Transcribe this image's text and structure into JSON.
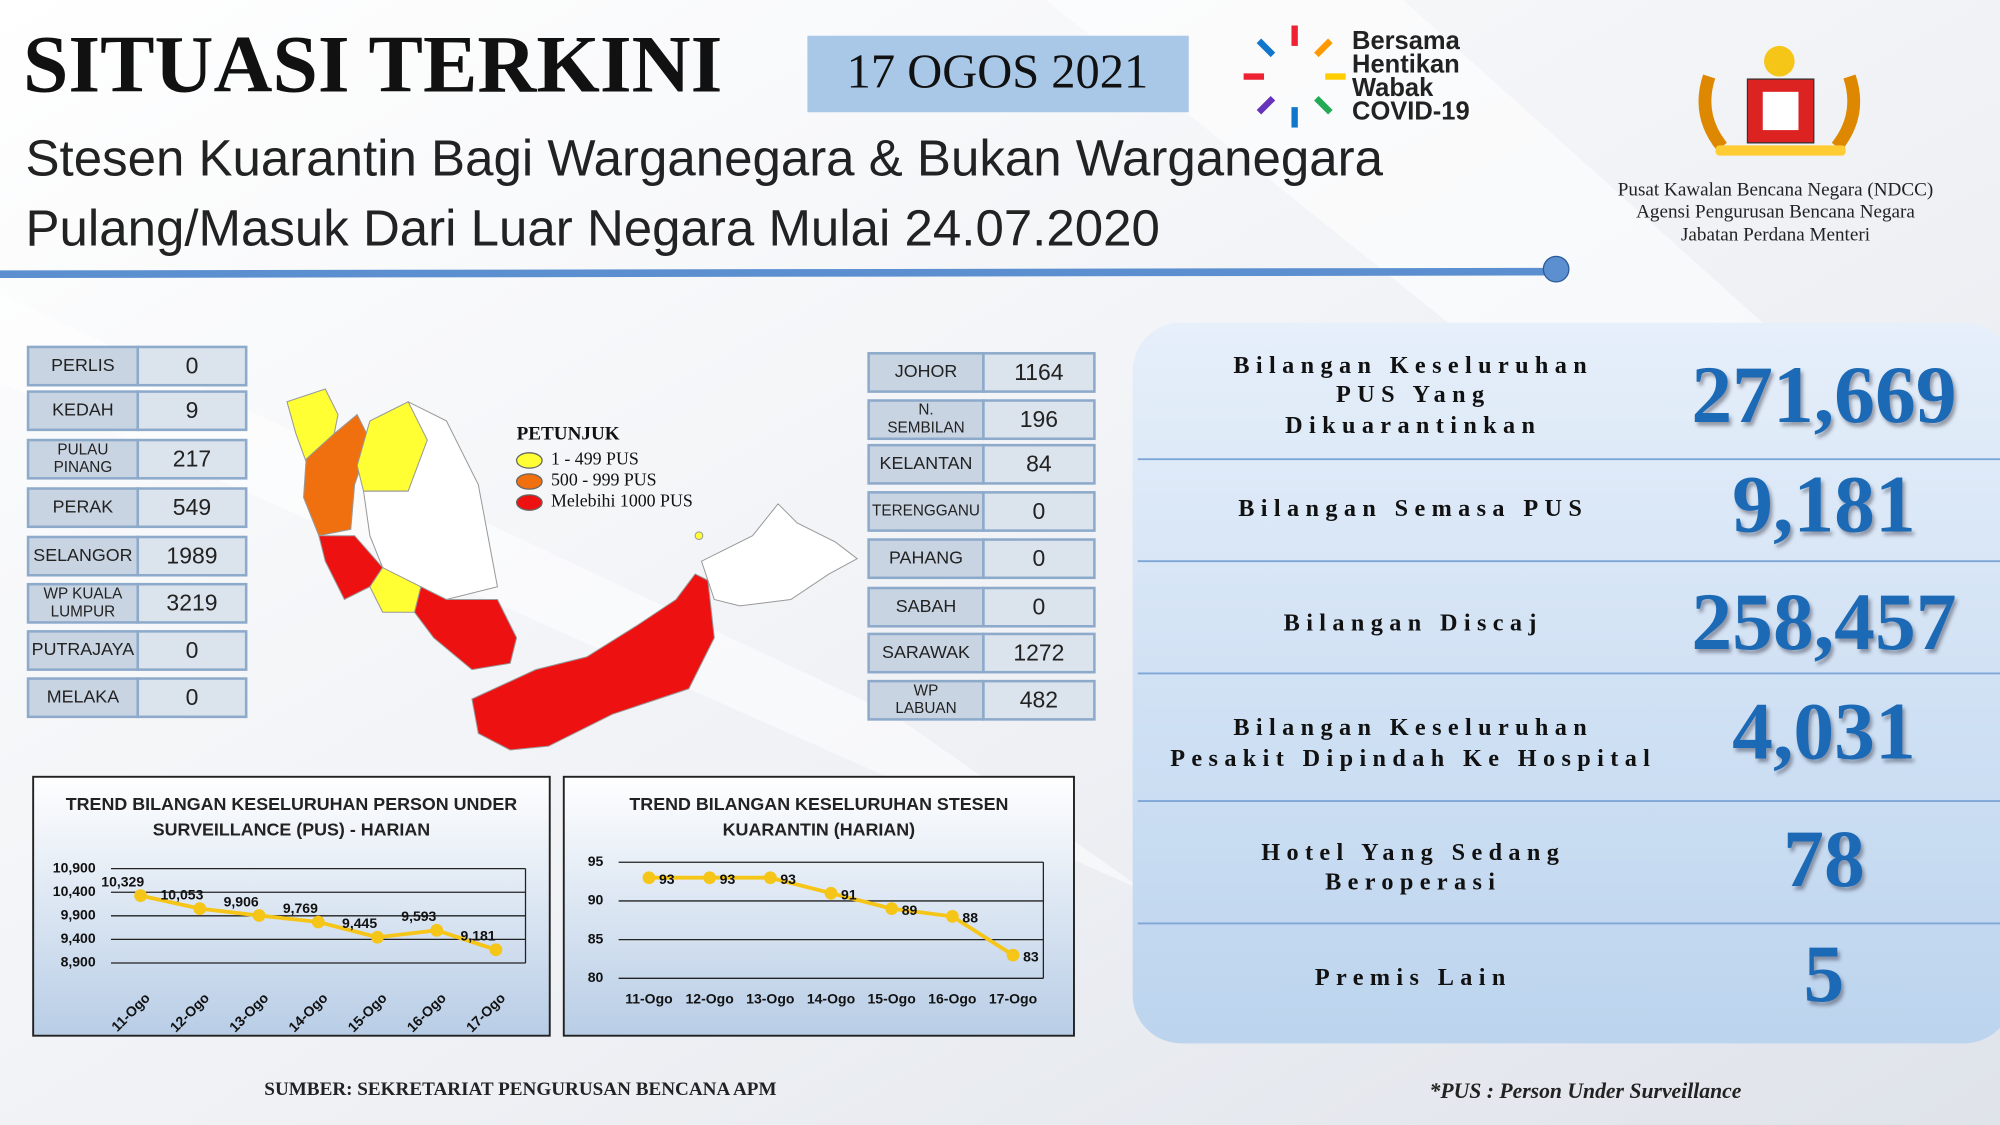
{
  "header": {
    "title": "SITUASI TERKINI",
    "date": "17 OGOS 2021",
    "campaign": [
      "Bersama",
      "Hentikan",
      "Wabak",
      "COVID-19"
    ],
    "subtitle": [
      "Stesen Kuarantin Bagi Warganegara & Bukan Warganegara",
      "Pulang/Masuk Dari Luar Negara Mulai 24.07.2020"
    ],
    "agency": [
      "Pusat Kawalan Bencana Negara (NDCC)",
      "Agensi Pengurusan Bencana Negara",
      "Jabatan Perdana Menteri"
    ]
  },
  "states_left": [
    {
      "name": [
        "PERLIS"
      ],
      "value": 0
    },
    {
      "name": [
        "KEDAH"
      ],
      "value": 9
    },
    {
      "name": [
        "PULAU",
        "PINANG"
      ],
      "value": 217
    },
    {
      "name": [
        "PERAK"
      ],
      "value": 549
    },
    {
      "name": [
        "SELANGOR"
      ],
      "value": 1989
    },
    {
      "name": [
        "WP KUALA",
        "LUMPUR"
      ],
      "value": 3219
    },
    {
      "name": [
        "PUTRAJAYA"
      ],
      "value": 0
    },
    {
      "name": [
        "MELAKA"
      ],
      "value": 0
    }
  ],
  "states_right": [
    {
      "name": [
        "JOHOR"
      ],
      "value": 1164
    },
    {
      "name": [
        "N.",
        "SEMBILAN"
      ],
      "value": 196
    },
    {
      "name": [
        "KELANTAN"
      ],
      "value": 84
    },
    {
      "name": [
        "TERENGGANU"
      ],
      "value": 0
    },
    {
      "name": [
        "PAHANG"
      ],
      "value": 0
    },
    {
      "name": [
        "SABAH"
      ],
      "value": 0
    },
    {
      "name": [
        "SARAWAK"
      ],
      "value": 1272
    },
    {
      "name": [
        "WP",
        "LABUAN"
      ],
      "value": 482
    }
  ],
  "legend": {
    "title": "PETUNJUK",
    "items": [
      {
        "label": "1 - 499 PUS",
        "color": "#ffff33"
      },
      {
        "label": "500 - 999 PUS",
        "color": "#f07010"
      },
      {
        "label": "Melebihi 1000 PUS",
        "color": "#ee1111"
      }
    ]
  },
  "stats": [
    {
      "label": [
        "Bilangan Keseluruhan",
        "PUS Yang",
        "Dikuarantinkan"
      ],
      "value": "271,669"
    },
    {
      "label": [
        "Bilangan Semasa PUS"
      ],
      "value": "9,181"
    },
    {
      "label": [
        "Bilangan Discaj"
      ],
      "value": "258,457"
    },
    {
      "label": [
        "Bilangan Keseluruhan",
        "Pesakit Dipindah Ke Hospital"
      ],
      "value": "4,031"
    },
    {
      "label": [
        "Hotel Yang Sedang",
        "Beroperasi"
      ],
      "value": "78"
    },
    {
      "label": [
        "Premis Lain"
      ],
      "value": "5"
    }
  ],
  "chart_data": [
    {
      "type": "line",
      "title": "TREND BILANGAN KESELURUHAN PERSON UNDER SURVEILLANCE (PUS) - HARIAN",
      "categories": [
        "11-Ogo",
        "12-Ogo",
        "13-Ogo",
        "14-Ogo",
        "15-Ogo",
        "16-Ogo",
        "17-Ogo"
      ],
      "values": [
        10329,
        10053,
        9906,
        9769,
        9445,
        9593,
        9181
      ],
      "value_labels": [
        "10,329",
        "10,053",
        "9,906",
        "9,769",
        "9,445",
        "9,593",
        "9,181"
      ],
      "color": "#f5c518",
      "ylim": [
        8900,
        10900
      ],
      "yticks": [
        {
          "value": 8900,
          "label": "8,900"
        },
        {
          "value": 9400,
          "label": "9,400"
        },
        {
          "value": 9900,
          "label": "9,900"
        },
        {
          "value": 10400,
          "label": "10,400"
        },
        {
          "value": 10900,
          "label": "10,900"
        }
      ],
      "grid": true
    },
    {
      "type": "line",
      "title": "TREND BILANGAN KESELURUHAN STESEN KUARANTIN (HARIAN)",
      "categories": [
        "11-Ogo",
        "12-Ogo",
        "13-Ogo",
        "14-Ogo",
        "15-Ogo",
        "16-Ogo",
        "17-Ogo"
      ],
      "values": [
        93,
        93,
        93,
        91,
        89,
        88,
        83
      ],
      "color": "#f5c518",
      "ylim": [
        80,
        95
      ],
      "yticks": [
        80,
        85,
        90,
        95
      ],
      "grid": true
    }
  ],
  "footer": {
    "source": "SUMBER: SEKRETARIAT PENGURUSAN BENCANA APM",
    "note": "*PUS : Person Under Surveillance"
  }
}
